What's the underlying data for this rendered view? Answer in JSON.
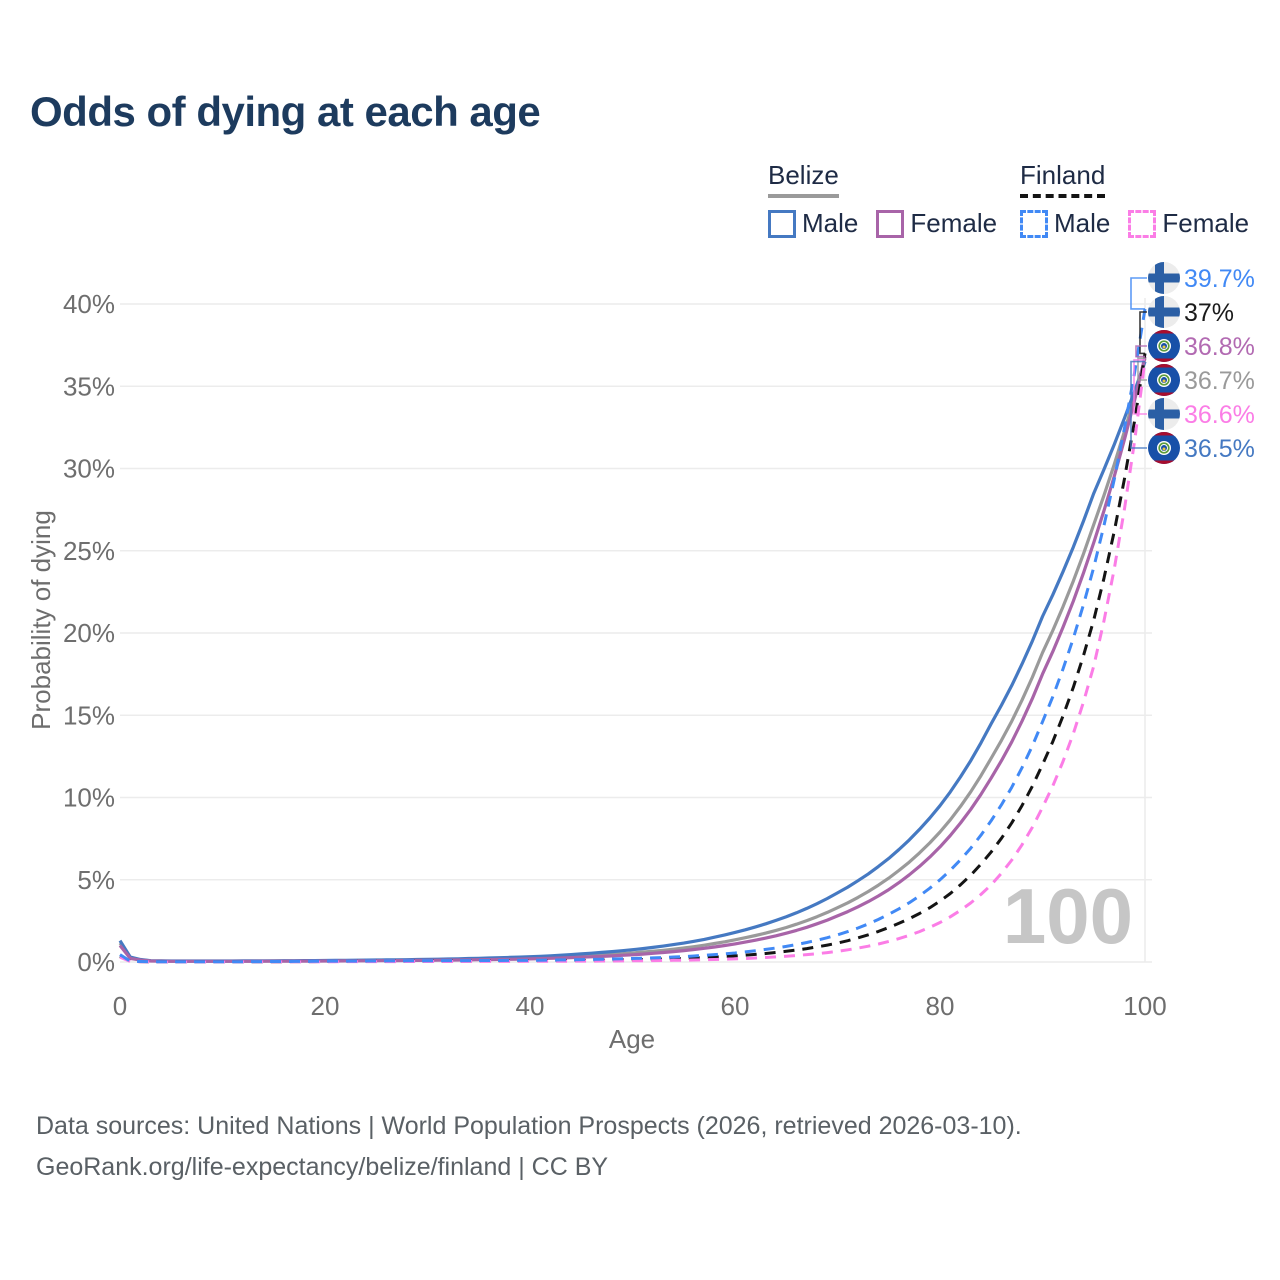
{
  "title": "Odds of dying at each age",
  "legend": {
    "groups": [
      {
        "country": "Belize",
        "line_style": "solid",
        "underline_color": "#9a9a9a",
        "items": [
          {
            "label": "Male",
            "color": "#4579c2"
          },
          {
            "label": "Female",
            "color": "#a864a8"
          }
        ]
      },
      {
        "country": "Finland",
        "line_style": "dashed",
        "underline_color": "#141414",
        "items": [
          {
            "label": "Male",
            "color": "#4189f5"
          },
          {
            "label": "Female",
            "color": "#fb7de6"
          }
        ]
      }
    ]
  },
  "chart_data": {
    "type": "line",
    "title": "Odds of dying at each age",
    "xlabel": "Age",
    "ylabel": "Probability of dying",
    "xlim": [
      0,
      100
    ],
    "ylim": [
      0,
      40
    ],
    "x_ticks": [
      0,
      20,
      40,
      60,
      80,
      100
    ],
    "y_ticks": [
      {
        "label": "0%",
        "value": 0
      },
      {
        "label": "5%",
        "value": 5
      },
      {
        "label": "10%",
        "value": 10
      },
      {
        "label": "15%",
        "value": 15
      },
      {
        "label": "20%",
        "value": 20
      },
      {
        "label": "25%",
        "value": 25
      },
      {
        "label": "30%",
        "value": 30
      },
      {
        "label": "35%",
        "value": 35
      },
      {
        "label": "40%",
        "value": 40
      }
    ],
    "grid": "horizontal",
    "legend_position": "top-right",
    "hover_age": "100",
    "x": [
      0,
      1,
      3,
      5,
      10,
      20,
      30,
      40,
      50,
      55,
      60,
      65,
      70,
      75,
      80,
      85,
      90,
      95,
      100
    ],
    "series": [
      {
        "id": "belize-total",
        "name": "Belize",
        "color": "#9a9a9a",
        "dashed": false,
        "values": [
          1.15,
          0.26,
          0.07,
          0.05,
          0.05,
          0.07,
          0.12,
          0.24,
          0.55,
          0.85,
          1.35,
          2.1,
          3.3,
          5.1,
          7.9,
          12.4,
          18.8,
          26.6,
          36.7
        ]
      },
      {
        "id": "belize-male",
        "name": "Belize Male",
        "color": "#4579c2",
        "dashed": false,
        "values": [
          1.3,
          0.3,
          0.08,
          0.06,
          0.06,
          0.09,
          0.16,
          0.32,
          0.75,
          1.15,
          1.8,
          2.75,
          4.2,
          6.3,
          9.5,
          14.5,
          21.0,
          28.5,
          36.5
        ]
      },
      {
        "id": "belize-female",
        "name": "Belize Female",
        "color": "#a864a8",
        "dashed": false,
        "values": [
          1.0,
          0.22,
          0.06,
          0.04,
          0.04,
          0.06,
          0.1,
          0.19,
          0.44,
          0.69,
          1.1,
          1.75,
          2.8,
          4.4,
          7.0,
          11.2,
          17.5,
          25.5,
          36.8
        ]
      },
      {
        "id": "finland-total",
        "name": "Finland",
        "color": "#141414",
        "dashed": true,
        "values": [
          0.35,
          0.04,
          0.015,
          0.01,
          0.01,
          0.03,
          0.05,
          0.07,
          0.14,
          0.22,
          0.37,
          0.65,
          1.15,
          2.1,
          3.7,
          6.7,
          12.0,
          20.8,
          37.0
        ]
      },
      {
        "id": "finland-female",
        "name": "Finland Female",
        "color": "#fb7de6",
        "dashed": true,
        "values": [
          0.3,
          0.03,
          0.01,
          0.008,
          0.008,
          0.02,
          0.03,
          0.04,
          0.07,
          0.11,
          0.19,
          0.35,
          0.65,
          1.25,
          2.4,
          4.7,
          9.4,
          18.0,
          36.6
        ]
      },
      {
        "id": "finland-male",
        "name": "Finland Male",
        "color": "#4189f5",
        "dashed": true,
        "values": [
          0.45,
          0.05,
          0.02,
          0.015,
          0.015,
          0.05,
          0.08,
          0.1,
          0.21,
          0.33,
          0.55,
          0.95,
          1.65,
          2.9,
          5.0,
          8.6,
          14.6,
          24.0,
          39.7
        ]
      }
    ],
    "end_labels": [
      {
        "text": "39.7%",
        "series_id": "finland-male",
        "flag": "finland",
        "color": "#4189f5"
      },
      {
        "text": "37%",
        "series_id": "finland-total",
        "flag": "finland",
        "color": "#1a1a1a"
      },
      {
        "text": "36.8%",
        "series_id": "belize-female",
        "flag": "belize",
        "color": "#b26ab2"
      },
      {
        "text": "36.7%",
        "series_id": "belize-total",
        "flag": "belize",
        "color": "#9a9a9a"
      },
      {
        "text": "36.6%",
        "series_id": "finland-female",
        "flag": "finland",
        "color": "#fb7de6"
      },
      {
        "text": "36.5%",
        "series_id": "belize-male",
        "flag": "belize",
        "color": "#4579c2"
      }
    ]
  },
  "footer": {
    "line1": "Data sources: United Nations | World Population Prospects (2026, retrieved 2026-03-10).",
    "line2": "GeoRank.org/life-expectancy/belize/finland | CC BY"
  }
}
